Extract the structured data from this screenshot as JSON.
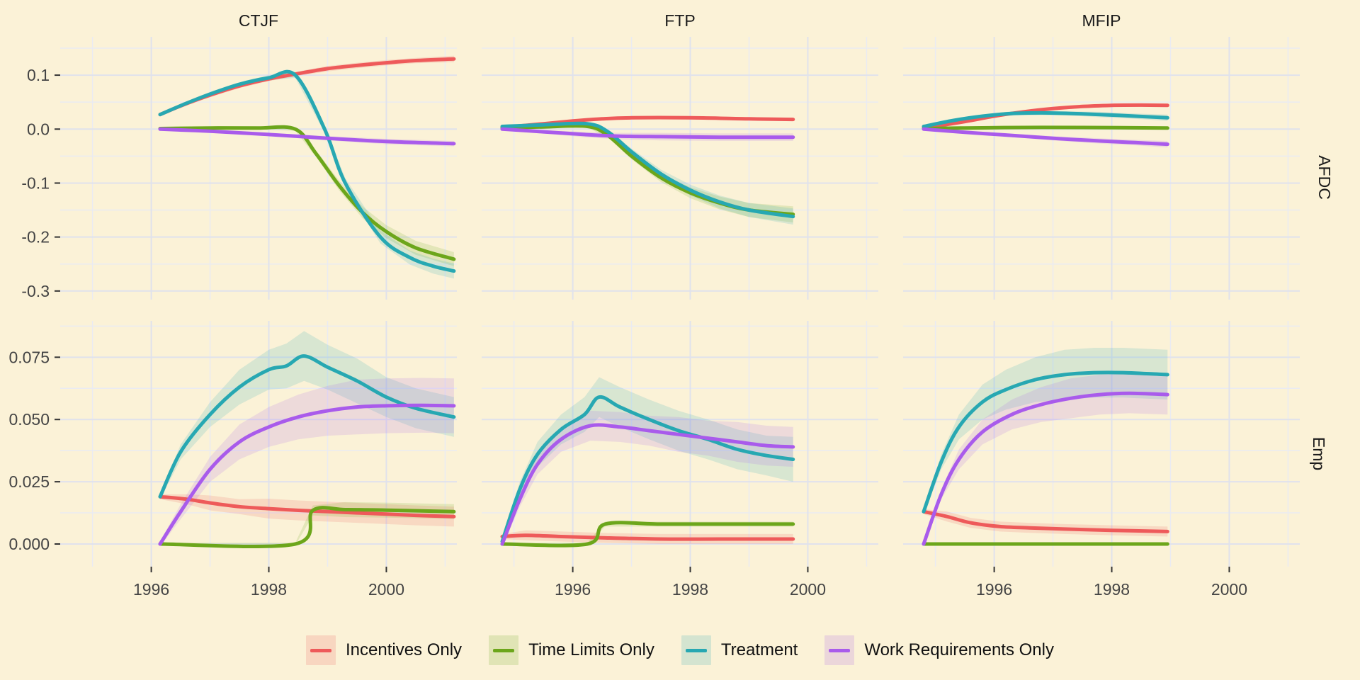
{
  "page_background": "#FBF2D7",
  "grid": {
    "major_color": "#E0E2EC",
    "minor_color": "#EAEBF2"
  },
  "axis": {
    "text_color": "#444444",
    "tick_color": "#333333"
  },
  "legend": {
    "title": ""
  },
  "chart_data": {
    "type": "line",
    "title": "",
    "facet_columns": [
      "CTJF",
      "FTP",
      "MFIP"
    ],
    "facet_rows": [
      "AFDC",
      "Emp"
    ],
    "x_domain": [
      1994.45,
      2001.2
    ],
    "x_ticks": [
      1996,
      1998,
      2000
    ],
    "x_minor_ticks": [
      1995,
      1997,
      1999,
      2001
    ],
    "rows": [
      {
        "name": "AFDC",
        "tick_labels": [
          "0.1",
          "0.0",
          "-0.1",
          "-0.2",
          "-0.3"
        ],
        "tick_values": [
          0.1,
          0.0,
          -0.1,
          -0.2,
          -0.3
        ],
        "minor_values": [
          0.15,
          0.05,
          -0.05,
          -0.15,
          -0.25
        ],
        "domain": [
          -0.316,
          0.171
        ]
      },
      {
        "name": "Emp",
        "tick_labels": [
          "0.075",
          "0.050",
          "0.025",
          "0.000"
        ],
        "tick_values": [
          0.075,
          0.05,
          0.025,
          0.0
        ],
        "minor_values": [
          0.0875,
          0.0625,
          0.0375,
          0.0125
        ],
        "domain": [
          -0.0091,
          0.0896
        ]
      }
    ],
    "series_meta": [
      {
        "id": "incentives",
        "label": "Incentives Only",
        "color": "#EE5A5A"
      },
      {
        "id": "timelimits",
        "label": "Time Limits Only",
        "color": "#6CA61B"
      },
      {
        "id": "treatment",
        "label": "Treatment",
        "color": "#27A8B2"
      },
      {
        "id": "workreq",
        "label": "Work Requirements Only",
        "color": "#A95BEB"
      }
    ],
    "ribbon_alpha": 0.16,
    "facets": [
      {
        "col": "CTJF",
        "row": "AFDC",
        "series": [
          {
            "id": "incentives",
            "x": [
              1996.15,
              1996.5,
              1997,
              1997.5,
              1998,
              1998.45,
              1999,
              1999.5,
              2000,
              2000.5,
              2001.15
            ],
            "y": [
              0.027,
              0.043,
              0.063,
              0.08,
              0.093,
              0.102,
              0.112,
              0.118,
              0.123,
              0.127,
              0.13
            ],
            "hw": [
              0.002,
              0.003,
              0.004,
              0.004,
              0.004,
              0.004,
              0.005,
              0.005,
              0.005,
              0.005,
              0.006
            ]
          },
          {
            "id": "timelimits",
            "x": [
              1996.15,
              1997,
              1997.8,
              1998.45,
              1998.8,
              1999.2,
              1999.6,
              2000,
              2000.5,
              2001.15
            ],
            "y": [
              0.001,
              0.002,
              0.002,
              0.0,
              -0.045,
              -0.105,
              -0.155,
              -0.19,
              -0.22,
              -0.241
            ],
            "hw": [
              0.001,
              0.002,
              0.002,
              0.003,
              0.006,
              0.009,
              0.011,
              0.012,
              0.013,
              0.013
            ]
          },
          {
            "id": "treatment",
            "x": [
              1996.15,
              1996.6,
              1997,
              1997.5,
              1998,
              1998.45,
              1998.95,
              1999.3,
              1999.9,
              2000.4,
              2000.8,
              2001.15
            ],
            "y": [
              0.027,
              0.048,
              0.065,
              0.083,
              0.095,
              0.1,
              0.0,
              -0.1,
              -0.2,
              -0.238,
              -0.254,
              -0.263
            ],
            "hw": [
              0.002,
              0.003,
              0.004,
              0.004,
              0.005,
              0.005,
              0.007,
              0.009,
              0.012,
              0.013,
              0.014,
              0.014
            ]
          },
          {
            "id": "workreq",
            "x": [
              1996.15,
              1997,
              1998,
              1999,
              2000,
              2001.15
            ],
            "y": [
              0.0,
              -0.004,
              -0.01,
              -0.017,
              -0.023,
              -0.027
            ],
            "hw": [
              0.001,
              0.002,
              0.003,
              0.004,
              0.005,
              0.005
            ]
          }
        ]
      },
      {
        "col": "FTP",
        "row": "AFDC",
        "series": [
          {
            "id": "incentives",
            "x": [
              1994.8,
              1995.5,
              1996,
              1996.5,
              1997,
              1998,
              1999,
              1999.75
            ],
            "y": [
              0.003,
              0.01,
              0.015,
              0.019,
              0.021,
              0.021,
              0.019,
              0.018
            ],
            "hw": [
              0.001,
              0.002,
              0.003,
              0.003,
              0.003,
              0.003,
              0.003,
              0.003
            ]
          },
          {
            "id": "timelimits",
            "x": [
              1994.8,
              1995.5,
              1996.25,
              1996.6,
              1997,
              1997.5,
              1998,
              1998.5,
              1999,
              1999.75
            ],
            "y": [
              0.002,
              0.004,
              0.005,
              -0.012,
              -0.05,
              -0.09,
              -0.118,
              -0.137,
              -0.15,
              -0.158
            ],
            "hw": [
              0.001,
              0.002,
              0.002,
              0.004,
              0.006,
              0.008,
              0.01,
              0.012,
              0.013,
              0.015
            ]
          },
          {
            "id": "treatment",
            "x": [
              1994.8,
              1995.5,
              1996.25,
              1996.6,
              1997,
              1997.5,
              1998,
              1998.5,
              1999,
              1999.75
            ],
            "y": [
              0.005,
              0.008,
              0.01,
              -0.005,
              -0.042,
              -0.083,
              -0.113,
              -0.135,
              -0.15,
              -0.162
            ],
            "hw": [
              0.001,
              0.002,
              0.002,
              0.004,
              0.006,
              0.008,
              0.01,
              0.012,
              0.013,
              0.015
            ]
          },
          {
            "id": "workreq",
            "x": [
              1994.8,
              1995.5,
              1996.2,
              1996.8,
              1997.5,
              1998.5,
              1999.75
            ],
            "y": [
              0.0,
              -0.005,
              -0.01,
              -0.013,
              -0.014,
              -0.015,
              -0.015
            ],
            "hw": [
              0.001,
              0.003,
              0.005,
              0.006,
              0.007,
              0.007,
              0.007
            ]
          }
        ]
      },
      {
        "col": "MFIP",
        "row": "AFDC",
        "series": [
          {
            "id": "incentives",
            "x": [
              1994.8,
              1995.5,
              1996,
              1996.5,
              1997,
              1997.5,
              1998,
              1998.5,
              1998.95
            ],
            "y": [
              0.002,
              0.014,
              0.024,
              0.032,
              0.038,
              0.042,
              0.044,
              0.0445,
              0.044
            ],
            "hw": [
              0.001,
              0.002,
              0.002,
              0.003,
              0.003,
              0.003,
              0.003,
              0.003,
              0.003
            ]
          },
          {
            "id": "timelimits",
            "x": [
              1994.8,
              1995.5,
              1996.5,
              1997.5,
              1998.95
            ],
            "y": [
              0.001,
              0.002,
              0.003,
              0.003,
              0.002
            ],
            "hw": [
              0.001,
              0.002,
              0.002,
              0.002,
              0.002
            ]
          },
          {
            "id": "treatment",
            "x": [
              1994.8,
              1995.3,
              1995.8,
              1996.3,
              1996.8,
              1997.3,
              1997.8,
              1998.4,
              1998.95
            ],
            "y": [
              0.005,
              0.016,
              0.024,
              0.029,
              0.03,
              0.029,
              0.027,
              0.024,
              0.021
            ],
            "hw": [
              0.001,
              0.002,
              0.003,
              0.004,
              0.004,
              0.004,
              0.005,
              0.005,
              0.006
            ]
          },
          {
            "id": "workreq",
            "x": [
              1994.8,
              1995.5,
              1996.2,
              1997,
              1997.8,
              1998.4,
              1998.95
            ],
            "y": [
              0.0,
              -0.006,
              -0.011,
              -0.017,
              -0.022,
              -0.025,
              -0.028
            ],
            "hw": [
              0.001,
              0.002,
              0.003,
              0.004,
              0.005,
              0.005,
              0.006
            ]
          }
        ]
      },
      {
        "col": "CTJF",
        "row": "Emp",
        "series": [
          {
            "id": "incentives",
            "x": [
              1996.15,
              1996.6,
              1997,
              1997.5,
              1998,
              1998.5,
              1999,
              1999.5,
              2000,
              2000.5,
              2001.15
            ],
            "y": [
              0.019,
              0.018,
              0.0165,
              0.015,
              0.0142,
              0.0135,
              0.013,
              0.0125,
              0.012,
              0.0115,
              0.011
            ],
            "hw": [
              0.001,
              0.002,
              0.003,
              0.003,
              0.004,
              0.004,
              0.004,
              0.004,
              0.004,
              0.004,
              0.004
            ]
          },
          {
            "id": "timelimits",
            "x": [
              1996.15,
              1998.45,
              1998.75,
              1999.3,
              2000,
              2000.6,
              2001.15
            ],
            "y": [
              0.0,
              0.0,
              0.0135,
              0.0138,
              0.0136,
              0.0133,
              0.013
            ],
            "hw": [
              0.0005,
              0.0005,
              0.002,
              0.003,
              0.003,
              0.003,
              0.003
            ]
          },
          {
            "id": "treatment",
            "x": [
              1996.15,
              1996.5,
              1997,
              1997.5,
              1998,
              1998.3,
              1998.6,
              1999,
              1999.5,
              2000,
              2000.5,
              2001.15
            ],
            "y": [
              0.019,
              0.037,
              0.052,
              0.063,
              0.07,
              0.0715,
              0.0755,
              0.071,
              0.0655,
              0.059,
              0.0545,
              0.051
            ],
            "hw": [
              0.001,
              0.003,
              0.005,
              0.007,
              0.008,
              0.009,
              0.01,
              0.009,
              0.009,
              0.008,
              0.008,
              0.008
            ]
          },
          {
            "id": "workreq",
            "x": [
              1996.15,
              1996.5,
              1997,
              1997.5,
              1998,
              1998.5,
              1999,
              1999.5,
              2000,
              2000.6,
              2001.15
            ],
            "y": [
              0.0,
              0.013,
              0.03,
              0.041,
              0.047,
              0.051,
              0.0535,
              0.055,
              0.0555,
              0.0557,
              0.0555
            ],
            "hw": [
              0.001,
              0.003,
              0.005,
              0.007,
              0.008,
              0.009,
              0.01,
              0.011,
              0.011,
              0.011,
              0.011
            ]
          }
        ]
      },
      {
        "col": "FTP",
        "row": "Emp",
        "series": [
          {
            "id": "incentives",
            "x": [
              1994.8,
              1995.2,
              1995.8,
              1996.5,
              1997.5,
              1998.5,
              1999.75
            ],
            "y": [
              0.003,
              0.0035,
              0.003,
              0.0025,
              0.002,
              0.002,
              0.002
            ],
            "hw": [
              0.001,
              0.002,
              0.002,
              0.002,
              0.002,
              0.002,
              0.002
            ]
          },
          {
            "id": "timelimits",
            "x": [
              1994.8,
              1996.25,
              1996.55,
              1997.5,
              1998.5,
              1999.75
            ],
            "y": [
              0.0,
              0.0,
              0.008,
              0.008,
              0.008,
              0.008
            ],
            "hw": [
              0.0005,
              0.0005,
              0.001,
              0.001,
              0.001,
              0.001
            ]
          },
          {
            "id": "treatment",
            "x": [
              1994.8,
              1995.1,
              1995.4,
              1995.8,
              1996.2,
              1996.45,
              1996.8,
              1997.3,
              1997.8,
              1998.3,
              1998.8,
              1999.3,
              1999.75
            ],
            "y": [
              0.001,
              0.022,
              0.036,
              0.046,
              0.052,
              0.059,
              0.055,
              0.05,
              0.0455,
              0.042,
              0.038,
              0.0355,
              0.034
            ],
            "hw": [
              0.001,
              0.003,
              0.005,
              0.006,
              0.007,
              0.008,
              0.008,
              0.008,
              0.008,
              0.008,
              0.008,
              0.008,
              0.009
            ]
          },
          {
            "id": "workreq",
            "x": [
              1994.8,
              1995.1,
              1995.4,
              1995.8,
              1996.3,
              1996.8,
              1997.3,
              1997.8,
              1998.3,
              1998.8,
              1999.3,
              1999.75
            ],
            "y": [
              0.0,
              0.018,
              0.032,
              0.042,
              0.0475,
              0.047,
              0.0455,
              0.044,
              0.0425,
              0.041,
              0.0395,
              0.039
            ],
            "hw": [
              0.001,
              0.003,
              0.004,
              0.005,
              0.006,
              0.006,
              0.006,
              0.007,
              0.007,
              0.008,
              0.008,
              0.008
            ]
          }
        ]
      },
      {
        "col": "MFIP",
        "row": "Emp",
        "series": [
          {
            "id": "incentives",
            "x": [
              1994.8,
              1995.2,
              1995.6,
              1996.1,
              1996.6,
              1997.2,
              1998,
              1998.95
            ],
            "y": [
              0.013,
              0.011,
              0.0085,
              0.007,
              0.0065,
              0.006,
              0.0055,
              0.005
            ],
            "hw": [
              0.001,
              0.002,
              0.002,
              0.002,
              0.002,
              0.002,
              0.002,
              0.002
            ]
          },
          {
            "id": "timelimits",
            "x": [
              1994.8,
              1998.95
            ],
            "y": [
              0.0,
              0.0
            ],
            "hw": [
              0.0005,
              0.0005
            ]
          },
          {
            "id": "treatment",
            "x": [
              1994.8,
              1995.1,
              1995.4,
              1995.8,
              1996.2,
              1996.7,
              1997.2,
              1997.7,
              1998.2,
              1998.95
            ],
            "y": [
              0.013,
              0.033,
              0.047,
              0.057,
              0.062,
              0.066,
              0.068,
              0.0688,
              0.0688,
              0.068
            ],
            "hw": [
              0.001,
              0.003,
              0.005,
              0.007,
              0.008,
              0.009,
              0.01,
              0.01,
              0.01,
              0.01
            ]
          },
          {
            "id": "workreq",
            "x": [
              1994.8,
              1995.1,
              1995.4,
              1995.8,
              1996.3,
              1996.8,
              1997.3,
              1997.8,
              1998.3,
              1998.95
            ],
            "y": [
              0.0,
              0.02,
              0.034,
              0.045,
              0.052,
              0.056,
              0.0585,
              0.06,
              0.0605,
              0.06
            ],
            "hw": [
              0.001,
              0.002,
              0.004,
              0.005,
              0.006,
              0.007,
              0.008,
              0.008,
              0.008,
              0.008
            ]
          }
        ]
      }
    ]
  }
}
